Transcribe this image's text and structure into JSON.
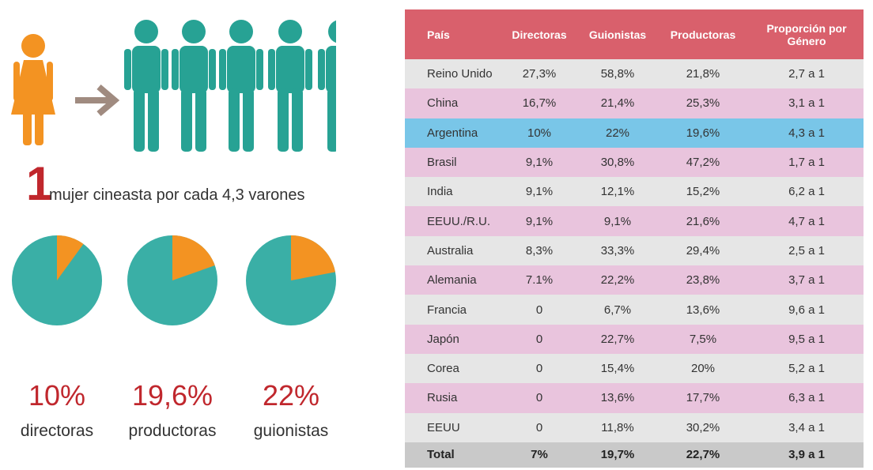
{
  "headline": {
    "number": "1",
    "text": "mujer cineasta por cada 4,3 varones"
  },
  "chart_data": [
    {
      "type": "pie",
      "values": [
        10
      ],
      "value_labels": [
        "10%"
      ],
      "label": "directoras",
      "color": "#f39322",
      "rest_color": "#3aafa6"
    },
    {
      "type": "pie",
      "values": [
        19.6
      ],
      "value_labels": [
        "19,6%"
      ],
      "label": "productoras",
      "color": "#f39322",
      "rest_color": "#3aafa6"
    },
    {
      "type": "pie",
      "values": [
        22
      ],
      "value_labels": [
        "22%"
      ],
      "label": "guionistas",
      "color": "#f39322",
      "rest_color": "#3aafa6"
    }
  ],
  "table": {
    "columns": [
      "País",
      "Directoras",
      "Guionistas",
      "Productoras",
      "Proporción por Género"
    ],
    "rows": [
      [
        "Reino Unido",
        "27,3%",
        "58,8%",
        "21,8%",
        "2,7 a 1"
      ],
      [
        "China",
        "16,7%",
        "21,4%",
        "25,3%",
        "3,1 a 1"
      ],
      [
        "Argentina",
        "10%",
        "22%",
        "19,6%",
        "4,3 a 1"
      ],
      [
        "Brasil",
        "9,1%",
        "30,8%",
        "47,2%",
        "1,7 a 1"
      ],
      [
        "India",
        "9,1%",
        "12,1%",
        "15,2%",
        "6,2 a 1"
      ],
      [
        "EEUU./R.U.",
        "9,1%",
        "9,1%",
        "21,6%",
        "4,7 a 1"
      ],
      [
        "Australia",
        "8,3%",
        "33,3%",
        "29,4%",
        "2,5 a 1"
      ],
      [
        "Alemania",
        "7.1%",
        "22,2%",
        "23,8%",
        "3,7 a 1"
      ],
      [
        "Francia",
        "0",
        "6,7%",
        "13,6%",
        "9,6 a 1"
      ],
      [
        "Japón",
        "0",
        "22,7%",
        "7,5%",
        "9,5 a 1"
      ],
      [
        "Corea",
        "0",
        "15,4%",
        "20%",
        "5,2 a 1"
      ],
      [
        "Rusia",
        "0",
        "13,6%",
        "17,7%",
        "6,3 a 1"
      ],
      [
        "EEUU",
        "0",
        "11,8%",
        "30,2%",
        "3,4 a 1"
      ]
    ],
    "total": [
      "Total",
      "7%",
      "19,7%",
      "22,7%",
      "3,9 a 1"
    ],
    "highlight_row": 2
  }
}
